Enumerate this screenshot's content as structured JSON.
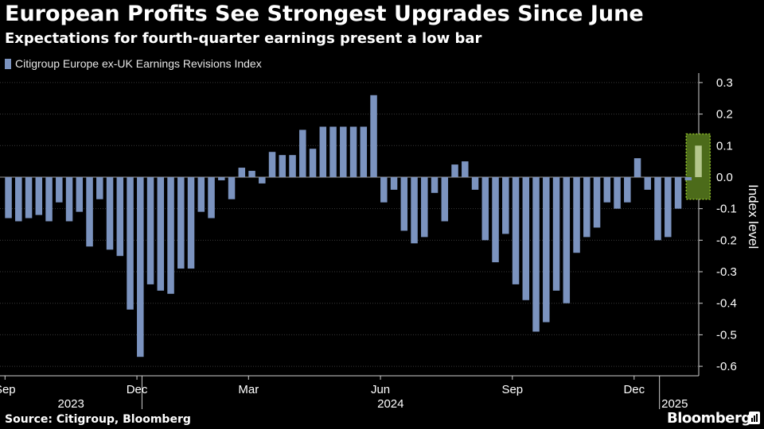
{
  "header": {
    "title": "European Profits See Strongest Upgrades Since June",
    "subtitle": "Expectations for fourth-quarter earnings present a low bar"
  },
  "footer": {
    "source": "Source: Citigroup, Bloomberg",
    "brand": "Bloomberg"
  },
  "colors": {
    "bar": "#7b93bf",
    "highlight_fill": "#4c6b1a",
    "highlight_stroke": "#8fbf2a",
    "highlight_bar": "#b4c78c",
    "gridline": "#3a3a3a",
    "text": "#ffffff"
  },
  "chart_data": {
    "type": "bar",
    "title": "European Profits See Strongest Upgrades Since June",
    "subtitle": "Expectations for fourth-quarter earnings present a low bar",
    "legend": [
      "Citigroup Europe ex-UK Earnings Revisions Index"
    ],
    "ylabel": "Index level",
    "xlabel": "",
    "ylim": [
      -0.63,
      0.33
    ],
    "yticks": [
      0.3,
      0.2,
      0.1,
      0.0,
      -0.1,
      -0.2,
      -0.3,
      -0.4,
      -0.5,
      -0.6
    ],
    "ytick_labels": [
      "0.3",
      "0.2",
      "0.1",
      "0.0",
      "-0.1",
      "-0.2",
      "-0.3",
      "-0.4",
      "-0.5",
      "-0.6"
    ],
    "x_month_labels": [
      {
        "label": "Sep",
        "week": 0
      },
      {
        "label": "Dec",
        "week": 13
      },
      {
        "label": "Mar",
        "week": 24
      },
      {
        "label": "Jun",
        "week": 37
      },
      {
        "label": "Sep",
        "week": 50
      },
      {
        "label": "Dec",
        "week": 62
      }
    ],
    "x_year_labels": [
      {
        "label": "2023",
        "week": 6.5
      },
      {
        "label": "2024",
        "week": 38
      },
      {
        "label": "2025",
        "week": 66
      }
    ],
    "year_dividers": [
      13.5,
      64.5
    ],
    "series": [
      {
        "name": "Citigroup Europe ex-UK Earnings Revisions Index",
        "values": [
          -0.13,
          -0.14,
          -0.13,
          -0.12,
          -0.14,
          -0.08,
          -0.14,
          -0.11,
          -0.22,
          -0.07,
          -0.23,
          -0.25,
          -0.42,
          -0.57,
          -0.34,
          -0.36,
          -0.37,
          -0.29,
          -0.29,
          -0.11,
          -0.13,
          -0.01,
          -0.07,
          0.03,
          0.02,
          -0.02,
          0.08,
          0.07,
          0.07,
          0.15,
          0.09,
          0.16,
          0.16,
          0.16,
          0.16,
          0.16,
          0.26,
          -0.08,
          -0.04,
          -0.17,
          -0.21,
          -0.19,
          -0.05,
          -0.14,
          0.04,
          0.05,
          -0.04,
          -0.2,
          -0.27,
          -0.18,
          -0.34,
          -0.39,
          -0.49,
          -0.46,
          -0.36,
          -0.4,
          -0.24,
          -0.19,
          -0.16,
          -0.08,
          -0.1,
          -0.08,
          0.06,
          -0.04,
          -0.2,
          -0.19,
          -0.1,
          -0.01,
          0.1
        ]
      }
    ],
    "highlight_index": 68
  }
}
